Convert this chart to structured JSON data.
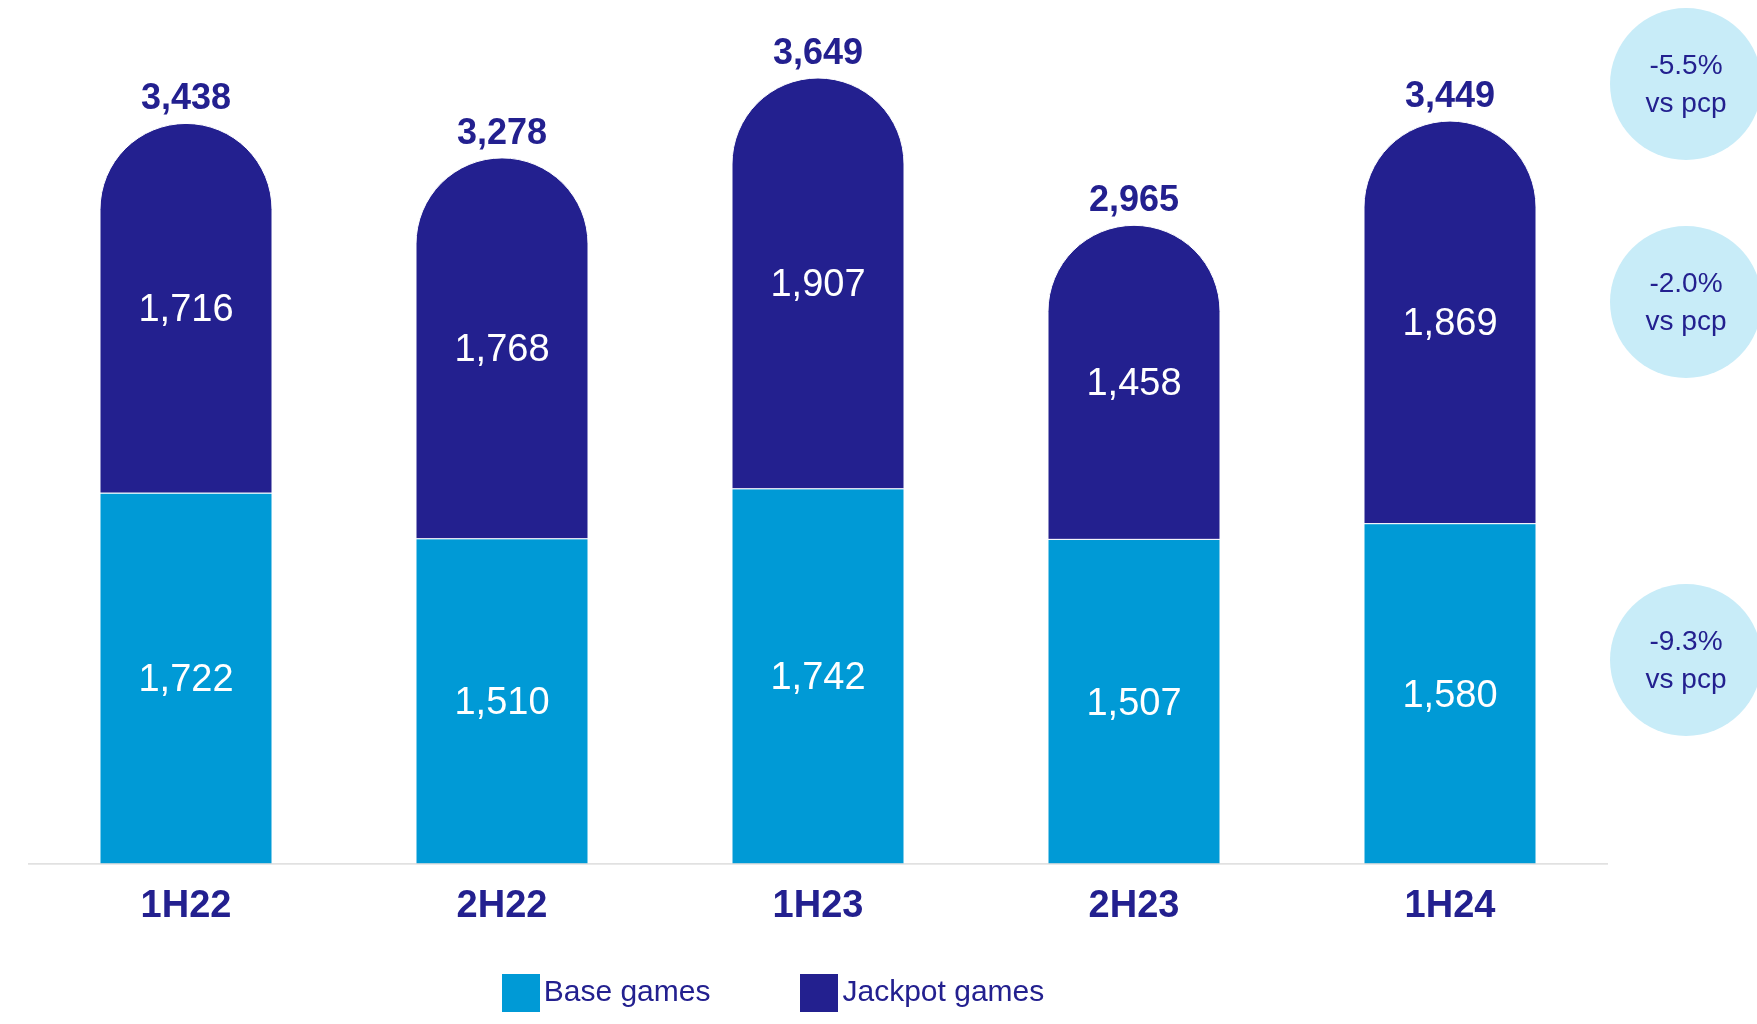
{
  "chart_data": {
    "type": "bar",
    "stacked": true,
    "categories": [
      "1H22",
      "2H22",
      "1H23",
      "2H23",
      "1H24"
    ],
    "series": [
      {
        "name": "Base games",
        "color": "#009ad6",
        "values": [
          1722,
          1510,
          1742,
          1507,
          1580
        ],
        "value_labels": [
          "1,722",
          "1,510",
          "1,742",
          "1,507",
          "1,580"
        ]
      },
      {
        "name": "Jackpot games",
        "color": "#23208f",
        "values": [
          1716,
          1768,
          1907,
          1458,
          1869
        ],
        "value_labels": [
          "1,716",
          "1,768",
          "1,907",
          "1,458",
          "1,869"
        ]
      }
    ],
    "totals": [
      "3,438",
      "3,278",
      "3,649",
      "2,965",
      "3,449"
    ],
    "annotations": [
      "-5.5%\nvs pcp",
      "-2.0%\nvs pcp",
      "-9.3%\nvs pcp"
    ],
    "legend": "bottom"
  }
}
